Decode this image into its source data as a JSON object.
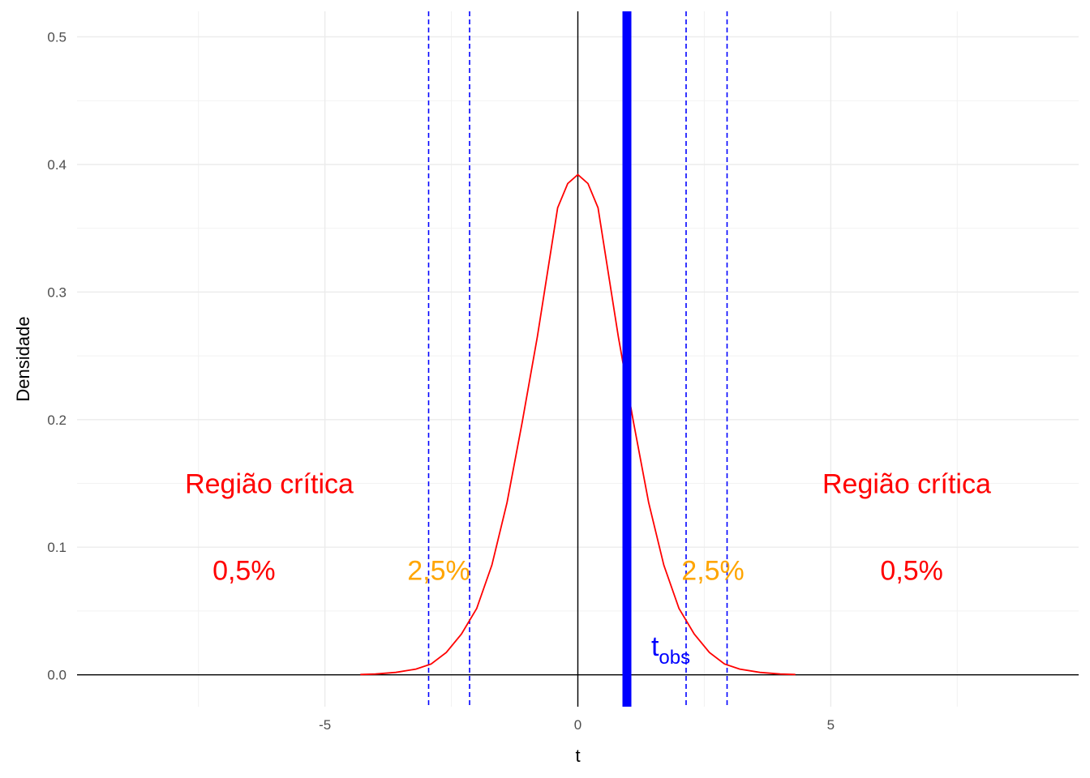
{
  "chart_data": {
    "type": "line",
    "xlabel": "t",
    "ylabel": "Densidade",
    "xlim": [
      -9.9,
      9.9
    ],
    "ylim": [
      -0.025,
      0.52
    ],
    "x_ticks": [
      -5,
      0,
      5
    ],
    "x_tick_labels": [
      "-5",
      "0",
      "5"
    ],
    "y_ticks": [
      0.0,
      0.1,
      0.2,
      0.3,
      0.4,
      0.5
    ],
    "y_tick_labels": [
      "0.0",
      "0.1",
      "0.2",
      "0.3",
      "0.4",
      "0.5"
    ],
    "grid": true,
    "series": [
      {
        "color": "#ff0000",
        "x": [
          -4.3,
          -4.0,
          -3.6,
          -3.2,
          -2.9,
          -2.6,
          -2.3,
          -2.0,
          -1.7,
          -1.4,
          -1.1,
          -0.8,
          -0.4,
          -0.2,
          0.0,
          0.2,
          0.4,
          0.8,
          1.1,
          1.4,
          1.7,
          2.0,
          2.3,
          2.6,
          2.9,
          3.2,
          3.6,
          4.0,
          4.3
        ],
        "y": [
          0.0002,
          0.0006,
          0.0019,
          0.0045,
          0.0085,
          0.0175,
          0.032,
          0.052,
          0.086,
          0.135,
          0.198,
          0.265,
          0.366,
          0.385,
          0.392,
          0.385,
          0.366,
          0.265,
          0.198,
          0.135,
          0.086,
          0.052,
          0.032,
          0.0175,
          0.0085,
          0.0045,
          0.0019,
          0.0006,
          0.0002
        ]
      }
    ],
    "reference_lines": {
      "zero_x": 0,
      "zero_y": 0,
      "critical_dashed_x": [
        -2.95,
        -2.14,
        2.14,
        2.95
      ],
      "dashed_color": "#0000ff",
      "t_obs_x": 0.97,
      "t_obs_color": "#0000ff"
    },
    "annotations": [
      {
        "text": "Região crítica",
        "x": -6.1,
        "y": 0.148,
        "color": "#ff0000"
      },
      {
        "text": "Região crítica",
        "x": 6.5,
        "y": 0.148,
        "color": "#ff0000"
      },
      {
        "text": "0,5%",
        "x": -6.6,
        "y": 0.08,
        "color": "#ff0000"
      },
      {
        "text": "2,5%",
        "x": -2.75,
        "y": 0.08,
        "color": "#ffa500"
      },
      {
        "text": "2,5%",
        "x": 2.67,
        "y": 0.08,
        "color": "#ffa500"
      },
      {
        "text": "0,5%",
        "x": 6.6,
        "y": 0.08,
        "color": "#ff0000"
      }
    ],
    "t_obs_label": {
      "main": "t",
      "sub": "obs",
      "x": 1.45,
      "y": 0.015,
      "color": "#0000ff"
    }
  }
}
